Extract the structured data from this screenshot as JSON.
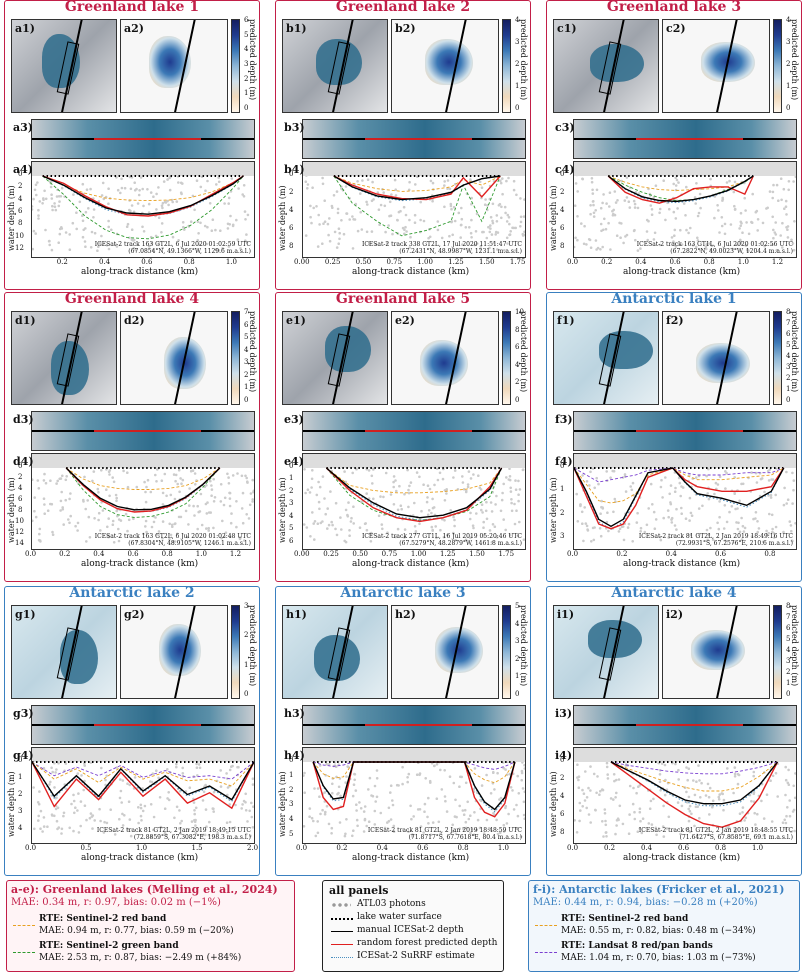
{
  "panels": [
    {
      "id": "a",
      "title": "Greenland lake 1",
      "region": "greenland",
      "cbar": {
        "max": 6,
        "ticks": [
          "6",
          "5",
          "4",
          "3",
          "2",
          "1",
          "0"
        ]
      },
      "info1": "ICESat-2 track 163 GT2L, 6 Jul 2020 01:02:59 UTC",
      "info2": "(67.0854°N, 49.1366°W, 1129.6 m.a.s.l.)",
      "xticks": [
        "0.2",
        "0.4",
        "0.6",
        "0.8",
        "1.0"
      ],
      "xrange": [
        0.05,
        1.1
      ],
      "yticks": [
        "0",
        "2",
        "4",
        "6",
        "8",
        "10",
        "12"
      ],
      "ymax": 12.5
    },
    {
      "id": "b",
      "title": "Greenland lake 2",
      "region": "greenland",
      "cbar": {
        "max": 4,
        "ticks": [
          "4",
          "3",
          "2",
          "1",
          "0"
        ]
      },
      "info1": "ICESat-2 track 338 GT2L, 17 Jul 2020 11:51:47 UTC",
      "info2": "(67.2431°N, 48.9987°W, 1231.1 m.a.s.l.)",
      "xticks": [
        "0.00",
        "0.25",
        "0.50",
        "0.75",
        "1.00",
        "1.25",
        "1.50",
        "1.75"
      ],
      "xrange": [
        0.0,
        1.8
      ],
      "yticks": [
        "0",
        "2",
        "4",
        "6",
        "8"
      ],
      "ymax": 8.5
    },
    {
      "id": "c",
      "title": "Greenland lake 3",
      "region": "greenland",
      "cbar": {
        "max": 4,
        "ticks": [
          "4",
          "3",
          "2",
          "1",
          "0"
        ]
      },
      "info1": "ICESat-2 track 163 GT1L, 6 Jul 2020 01:02:56 UTC",
      "info2": "(67.2822°N, 49.0023°W, 1204.4 m.a.s.l.)",
      "xticks": [
        "0.0",
        "0.2",
        "0.4",
        "0.6",
        "0.8",
        "1.0",
        "1.2"
      ],
      "xrange": [
        0.0,
        1.3
      ],
      "yticks": [
        "0",
        "2",
        "4",
        "6",
        "8"
      ],
      "ymax": 8.5
    },
    {
      "id": "d",
      "title": "Greenland lake 4",
      "region": "greenland",
      "cbar": {
        "max": 7,
        "ticks": [
          "7",
          "6",
          "5",
          "4",
          "3",
          "2",
          "1",
          "0"
        ]
      },
      "info1": "ICESat-2 track 163 GT2L, 6 Jul 2020 01:02:48 UTC",
      "info2": "(67.8304°N, 48.9105°W, 1246.1 m.a.s.l.)",
      "xticks": [
        "0.0",
        "0.2",
        "0.4",
        "0.6",
        "0.8",
        "1.0",
        "1.2"
      ],
      "xrange": [
        0.0,
        1.3
      ],
      "yticks": [
        "0",
        "2",
        "4",
        "6",
        "8",
        "10",
        "12",
        "14"
      ],
      "ymax": 14
    },
    {
      "id": "e",
      "title": "Greenland lake 5",
      "region": "greenland",
      "cbar": {
        "max": 10,
        "ticks": [
          "10",
          "8",
          "6",
          "4",
          "2",
          "0"
        ]
      },
      "info1": "ICESat-2 track 277 GT1L, 16 Jul 2019 05:20:46 UTC",
      "info2": "(67.5279°N, 48.2879°W, 1461.8 m.a.s.l.)",
      "xticks": [
        "0.00",
        "0.25",
        "0.50",
        "0.75",
        "1.00",
        "1.25",
        "1.50",
        "1.75"
      ],
      "xrange": [
        0.0,
        1.9
      ],
      "yticks": [
        "0",
        "1",
        "2",
        "3",
        "4",
        "5",
        "6"
      ],
      "ymax": 6.2
    },
    {
      "id": "f",
      "title": "Antarctic lake 1",
      "region": "antarctic",
      "cbar": {
        "max": 8,
        "ticks": [
          "8",
          "7",
          "6",
          "5",
          "4",
          "3",
          "2",
          "1",
          "0"
        ]
      },
      "info1": "ICESat-2 track 81 GT2L, 2 Jan 2019 18:49:16 UTC",
      "info2": "(72.9931°S, 67.2576°E, 210.6 m.a.s.l.)",
      "xticks": [
        "0.0",
        "0.2",
        "0.4",
        "0.6",
        "0.8"
      ],
      "xrange": [
        0.0,
        0.9
      ],
      "yticks": [
        "0",
        "1",
        "2",
        "3"
      ],
      "ymax": 3.3
    },
    {
      "id": "g",
      "title": "Antarctic lake 2",
      "region": "antarctic",
      "cbar": {
        "max": 3,
        "ticks": [
          "3",
          "2",
          "1",
          "0"
        ]
      },
      "info1": "ICESat-2 track 81 GT2L, 2 Jan 2019 18:49:15 UTC",
      "info2": "(72.8859°S, 67.3082°E, 198.3 m.a.s.l.)",
      "xticks": [
        "0.0",
        "0.5",
        "1.0",
        "1.5",
        "2.0"
      ],
      "xrange": [
        0.0,
        2.0
      ],
      "yticks": [
        "0",
        "1",
        "2",
        "3",
        "4"
      ],
      "ymax": 4.5
    },
    {
      "id": "h",
      "title": "Antarctic lake 3",
      "region": "antarctic",
      "cbar": {
        "max": 5,
        "ticks": [
          "5",
          "4",
          "3",
          "2",
          "1",
          "0"
        ]
      },
      "info1": "ICESat-2 track 81 GT2L, 2 Jan 2019 18:48:59 UTC",
      "info2": "(71.8717°S, 67.7618°E, 80.4 m.a.s.l.)",
      "xticks": [
        "0.0",
        "0.2",
        "0.4",
        "0.6",
        "0.8",
        "1.0"
      ],
      "xrange": [
        0.0,
        1.1
      ],
      "yticks": [
        "0",
        "1",
        "2",
        "3",
        "4",
        "5"
      ],
      "ymax": 5.2
    },
    {
      "id": "i",
      "title": "Antarctic lake 4",
      "region": "antarctic",
      "cbar": {
        "max": 8,
        "ticks": [
          "8",
          "7",
          "6",
          "5",
          "4",
          "3",
          "2",
          "1",
          "0"
        ]
      },
      "info1": "ICESat-2 track 81 GT2L, 2 Jan 2019 18:48:55 UTC",
      "info2": "(71.6427°S, 67.8585°E, 69.1 m.a.s.l.)",
      "xticks": [
        "0.0",
        "0.2",
        "0.4",
        "0.6",
        "0.8",
        "1.0"
      ],
      "xrange": [
        0.0,
        1.2
      ],
      "yticks": [
        "0",
        "2",
        "4",
        "6",
        "8"
      ],
      "ymax": 8.5
    }
  ],
  "labels": {
    "ylabel": "water depth (m)",
    "xlabel": "along-track distance (km)",
    "cblabel": "predicted depth (m)"
  },
  "legend_left": {
    "title": "a-e): Greenland lakes (Melling et al., 2024)",
    "summary": "MAE: 0.34 m, r: 0.97, bias: 0.02 m (−1%)",
    "items": [
      {
        "name": "RTE: Sentinel-2 red band",
        "stats": "MAE: 0.94 m, r: 0.77, bias: 0.59 m (−20%)",
        "color": "#e8a020"
      },
      {
        "name": "RTE: Sentinel-2 green band",
        "stats": "MAE: 2.53 m, r: 0.87, bias: −2.49 m (+84%)",
        "color": "#2e9a2e"
      }
    ]
  },
  "legend_mid": {
    "title": "all panels",
    "items": [
      {
        "name": "ATL03 photons",
        "style": "dots",
        "color": "#999999"
      },
      {
        "name": "lake water surface",
        "style": "dotted",
        "color": "#000000"
      },
      {
        "name": "manual ICESat-2 depth",
        "style": "solid",
        "color": "#000000"
      },
      {
        "name": "random forest predicted depth",
        "style": "solid",
        "color": "#e02020"
      },
      {
        "name": "ICESat-2 SuRRF estimate",
        "style": "dotted",
        "color": "#4a8fc0"
      }
    ]
  },
  "legend_right": {
    "title": "f-i): Antarctic lakes (Fricker et al., 2021)",
    "summary": "MAE: 0.44 m, r: 0.94, bias: −0.28 m (+20%)",
    "items": [
      {
        "name": "RTE: Sentinel-2 red band",
        "stats": "MAE: 0.55 m, r: 0.82, bias: 0.48 m (−34%)",
        "color": "#e8a020"
      },
      {
        "name": "RTE: Landsat 8 red/pan bands",
        "stats": "MAE: 1.04 m, r: 0.70, bias: 1.03 m (−73%)",
        "color": "#7a3fd0"
      }
    ]
  },
  "colors": {
    "greenland": "#c21f48",
    "antarctic": "#3a80c0"
  },
  "chart_data": {
    "type": "line",
    "xlabel": "along-track distance (km)",
    "ylabel": "water depth (m)",
    "series_names": [
      "manual ICESat-2 depth",
      "random forest predicted depth",
      "ICESat-2 SuRRF estimate",
      "RTE: Sentinel-2 red band",
      "RTE: Sentinel-2 green band / Landsat 8 red/pan bands"
    ],
    "profiles": [
      {
        "panel": "a4",
        "x": [
          0.1,
          0.2,
          0.3,
          0.4,
          0.5,
          0.6,
          0.7,
          0.8,
          0.9,
          1.0,
          1.05
        ],
        "manual": [
          0,
          1.5,
          3.5,
          5.2,
          6.0,
          6.2,
          5.8,
          4.8,
          3.2,
          1.3,
          0
        ],
        "rf": [
          0,
          1.2,
          3.2,
          5.0,
          6.3,
          6.5,
          6.0,
          4.9,
          3.0,
          1.1,
          0
        ],
        "rte1": [
          0,
          1.5,
          2.8,
          3.6,
          3.9,
          4.0,
          3.9,
          3.5,
          2.6,
          1.1,
          0
        ],
        "rte2": [
          0,
          3.0,
          6.5,
          8.8,
          10.0,
          10.2,
          9.6,
          8.0,
          5.5,
          2.0,
          0
        ]
      },
      {
        "panel": "b4",
        "x": [
          0.25,
          0.4,
          0.6,
          0.8,
          1.0,
          1.2,
          1.3,
          1.45,
          1.6
        ],
        "manual": [
          0,
          1.2,
          2.2,
          2.6,
          2.4,
          1.8,
          1.0,
          0.3,
          0
        ],
        "rf": [
          0,
          1.0,
          2.0,
          2.5,
          2.6,
          2.0,
          0.2,
          2.3,
          0
        ],
        "rte1": [
          0,
          0.8,
          1.4,
          1.7,
          1.6,
          1.2,
          0.4,
          1.0,
          0
        ],
        "rte2": [
          0,
          3.0,
          5.0,
          6.6,
          6.0,
          5.0,
          1.0,
          5.0,
          0
        ]
      },
      {
        "panel": "c4",
        "x": [
          0.2,
          0.3,
          0.4,
          0.5,
          0.6,
          0.7,
          0.8,
          0.9,
          1.0,
          1.05
        ],
        "manual": [
          0,
          1.4,
          2.3,
          2.7,
          2.8,
          2.6,
          2.2,
          1.6,
          0.6,
          0
        ],
        "rf": [
          0,
          1.8,
          2.6,
          3.0,
          2.4,
          1.4,
          1.2,
          1.2,
          2.0,
          0
        ],
        "rte1": [
          0,
          0.7,
          1.2,
          1.5,
          1.6,
          1.5,
          1.4,
          1.2,
          0.6,
          0
        ],
        "rte2": [
          0,
          1.0,
          1.8,
          2.4,
          2.7,
          2.6,
          2.2,
          1.5,
          0.7,
          0
        ]
      },
      {
        "panel": "d4",
        "x": [
          0.2,
          0.3,
          0.4,
          0.5,
          0.6,
          0.7,
          0.8,
          0.9,
          1.0,
          1.1
        ],
        "manual": [
          0,
          3.0,
          5.5,
          7.0,
          7.6,
          7.5,
          6.8,
          5.3,
          3.0,
          0
        ],
        "rf": [
          0,
          3.2,
          5.8,
          7.4,
          8.0,
          7.8,
          7.0,
          5.4,
          3.0,
          0
        ],
        "rte1": [
          0,
          2.0,
          3.2,
          3.7,
          3.9,
          3.9,
          3.7,
          3.2,
          2.0,
          0
        ],
        "rte2": [
          0,
          4.0,
          7.0,
          8.5,
          9.0,
          8.8,
          8.0,
          6.5,
          3.5,
          0
        ]
      },
      {
        "panel": "e4",
        "x": [
          0.2,
          0.4,
          0.6,
          0.8,
          1.0,
          1.2,
          1.4,
          1.6,
          1.7
        ],
        "manual": [
          0,
          1.6,
          2.8,
          3.7,
          4.0,
          3.8,
          3.2,
          1.7,
          0
        ],
        "rf": [
          0,
          1.8,
          3.2,
          4.0,
          4.3,
          4.0,
          3.4,
          1.5,
          0
        ],
        "rte1": [
          0,
          1.4,
          1.8,
          2.0,
          2.0,
          1.9,
          1.7,
          1.2,
          0
        ],
        "rte2": [
          0,
          2.2,
          3.4,
          4.0,
          4.2,
          4.0,
          3.5,
          2.3,
          0
        ]
      },
      {
        "panel": "f4",
        "x": [
          0.0,
          0.05,
          0.1,
          0.15,
          0.2,
          0.25,
          0.3,
          0.4,
          0.45,
          0.5,
          0.6,
          0.7,
          0.8,
          0.85
        ],
        "manual": [
          0,
          1.0,
          2.2,
          2.5,
          2.2,
          1.2,
          0.2,
          0,
          0.6,
          1.1,
          1.3,
          1.6,
          1.0,
          0
        ],
        "rf": [
          0,
          1.2,
          2.4,
          2.6,
          2.4,
          1.6,
          0.4,
          0,
          0.5,
          0.8,
          1.0,
          1.0,
          0.8,
          0
        ],
        "rte1": [
          0,
          0.7,
          1.4,
          1.5,
          1.4,
          1.1,
          0.3,
          0,
          0.3,
          0.5,
          0.5,
          0.4,
          0.3,
          0
        ],
        "rte2": [
          0,
          0.3,
          0.6,
          0.5,
          0.4,
          0.3,
          0.1,
          0,
          0.2,
          0.3,
          0.3,
          0.2,
          0.2,
          0
        ]
      },
      {
        "panel": "g4",
        "x": [
          0.0,
          0.2,
          0.4,
          0.6,
          0.8,
          1.0,
          1.2,
          1.4,
          1.6,
          1.8,
          2.0
        ],
        "manual": [
          0,
          2.0,
          0.8,
          2.0,
          0.4,
          1.7,
          0.8,
          1.9,
          1.4,
          2.2,
          0
        ],
        "rf": [
          0,
          2.6,
          1.0,
          2.2,
          0.6,
          2.0,
          1.0,
          2.4,
          1.8,
          2.7,
          0
        ],
        "rte1": [
          0,
          1.0,
          0.4,
          1.2,
          0.3,
          1.0,
          0.6,
          1.1,
          1.0,
          1.4,
          0
        ],
        "rte2": [
          0,
          0.8,
          0.3,
          0.8,
          0.2,
          0.9,
          0.5,
          0.9,
          0.8,
          1.0,
          0
        ]
      },
      {
        "panel": "h4",
        "x": [
          0.05,
          0.1,
          0.15,
          0.2,
          0.25,
          0.5,
          0.8,
          0.85,
          0.9,
          0.95,
          1.0,
          1.05
        ],
        "manual": [
          0,
          1.6,
          2.5,
          2.4,
          0,
          0,
          0,
          1.6,
          2.7,
          3.2,
          2.4,
          0
        ],
        "rf": [
          0,
          2.4,
          3.2,
          3.0,
          0,
          0,
          0,
          2.4,
          3.4,
          3.7,
          2.8,
          0
        ],
        "rte1": [
          0,
          0.8,
          1.1,
          1.0,
          0,
          0,
          0,
          0.8,
          1.2,
          1.4,
          1.0,
          0
        ],
        "rte2": [
          0,
          0.2,
          0.3,
          0.2,
          0,
          0,
          0,
          0.2,
          0.4,
          0.5,
          0.3,
          0
        ]
      },
      {
        "panel": "i4",
        "x": [
          0.2,
          0.3,
          0.4,
          0.5,
          0.6,
          0.7,
          0.8,
          0.9,
          1.0,
          1.1
        ],
        "manual": [
          0,
          1.0,
          2.0,
          3.2,
          4.2,
          4.6,
          4.6,
          4.2,
          2.6,
          0
        ],
        "rf": [
          0,
          1.5,
          3.0,
          4.5,
          5.8,
          6.8,
          7.2,
          6.5,
          4.0,
          0
        ],
        "rte1": [
          0,
          0.8,
          1.5,
          2.2,
          2.8,
          3.2,
          3.2,
          2.8,
          1.6,
          0
        ],
        "rte2": [
          0,
          0.4,
          0.7,
          1.0,
          1.2,
          1.3,
          1.3,
          1.0,
          0.6,
          0
        ]
      }
    ]
  }
}
